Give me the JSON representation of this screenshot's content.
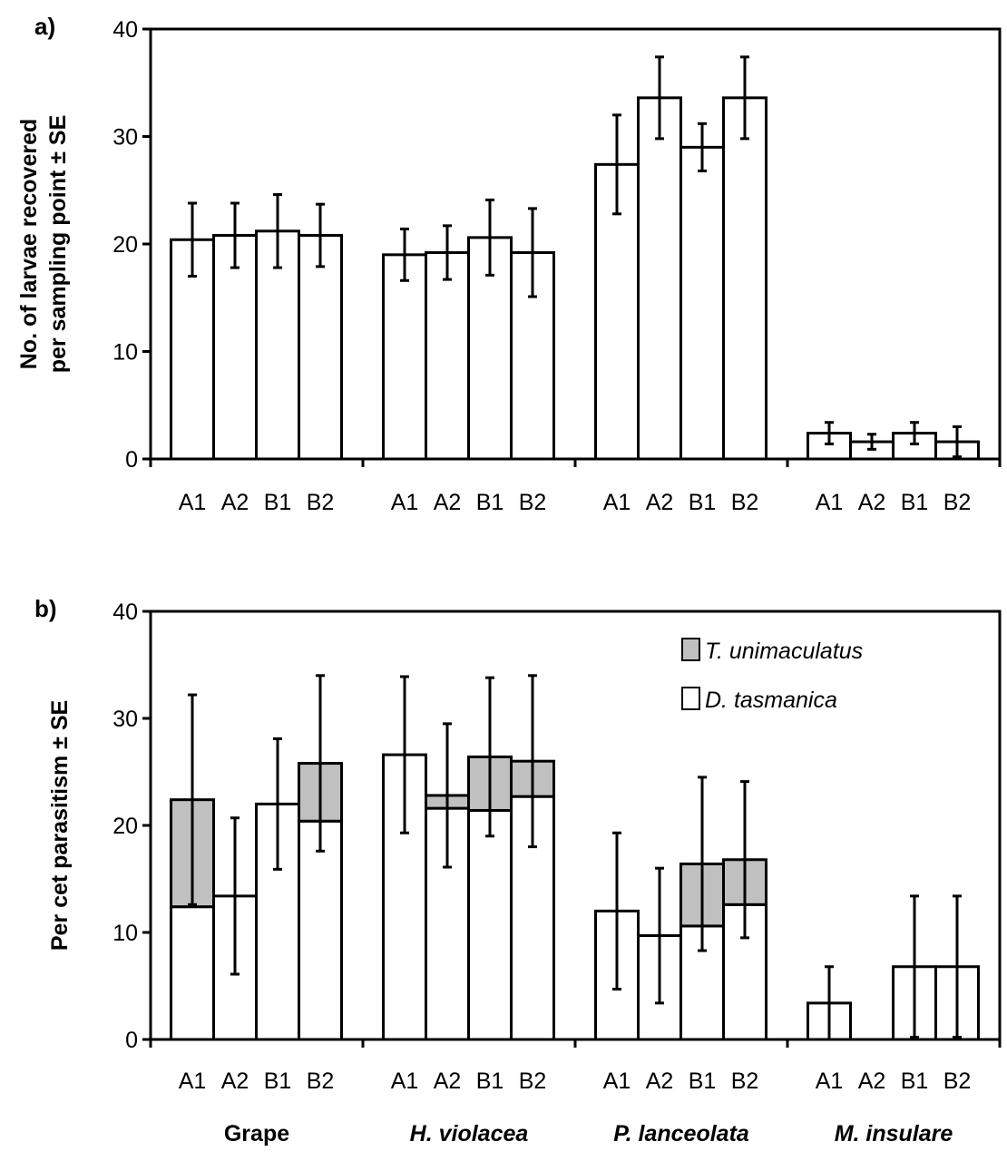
{
  "chart_data": [
    {
      "type": "bar",
      "panel_label": "a)",
      "ylabel_line1": "No. of larvae recovered",
      "ylabel_line2": "per sampling point ± SE",
      "ylim": [
        0,
        40
      ],
      "yticks": [
        "0",
        "10",
        "20",
        "30",
        "40"
      ],
      "groups": [
        {
          "sub_labels": [
            "A1",
            "A2",
            "B1",
            "B2"
          ],
          "values": [
            20.4,
            20.8,
            21.2,
            20.8
          ],
          "se": [
            3.4,
            3.0,
            3.4,
            2.9
          ]
        },
        {
          "sub_labels": [
            "A1",
            "A2",
            "B1",
            "B2"
          ],
          "values": [
            19.0,
            19.2,
            20.6,
            19.2
          ],
          "se": [
            2.4,
            2.5,
            3.5,
            4.1
          ]
        },
        {
          "sub_labels": [
            "A1",
            "A2",
            "B1",
            "B2"
          ],
          "values": [
            27.4,
            33.6,
            29.0,
            33.6
          ],
          "se": [
            4.6,
            3.8,
            2.2,
            3.8
          ]
        },
        {
          "sub_labels": [
            "A1",
            "A2",
            "B1",
            "B2"
          ],
          "values": [
            2.4,
            1.6,
            2.4,
            1.6
          ],
          "se": [
            1.0,
            0.7,
            1.0,
            1.4
          ]
        }
      ]
    },
    {
      "type": "bar",
      "stacked": true,
      "panel_label": "b)",
      "ylabel": "Per cet parasitism ± SE",
      "ylim": [
        0,
        40
      ],
      "yticks": [
        "0",
        "10",
        "20",
        "30",
        "40"
      ],
      "legend": {
        "position": "top-right",
        "entries": [
          {
            "name": "T. unimaculatus",
            "color": "#c0c0c0"
          },
          {
            "name": "D. tasmanica",
            "color": "#ffffff"
          }
        ]
      },
      "categories": [
        "Grape",
        "H. violacea",
        "P. lanceolata",
        "M. insulare"
      ],
      "groups": [
        {
          "sub_labels": [
            "A1",
            "A2",
            "B1",
            "B2"
          ],
          "d_tasmanica": [
            12.4,
            13.4,
            22.0,
            20.4
          ],
          "t_unimaculatus": [
            10.0,
            0,
            0,
            5.4
          ],
          "total": [
            22.4,
            13.4,
            22.0,
            25.8
          ],
          "se": [
            9.8,
            7.3,
            6.1,
            8.2
          ]
        },
        {
          "sub_labels": [
            "A1",
            "A2",
            "B1",
            "B2"
          ],
          "d_tasmanica": [
            26.6,
            21.6,
            21.4,
            22.7
          ],
          "t_unimaculatus": [
            0,
            1.2,
            5.0,
            3.3
          ],
          "total": [
            26.6,
            22.8,
            26.4,
            26.0
          ],
          "se": [
            7.3,
            6.7,
            7.4,
            8.0
          ]
        },
        {
          "sub_labels": [
            "A1",
            "A2",
            "B1",
            "B2"
          ],
          "d_tasmanica": [
            12.0,
            9.7,
            10.6,
            12.6
          ],
          "t_unimaculatus": [
            0,
            0,
            5.8,
            4.2
          ],
          "total": [
            12.0,
            9.7,
            16.4,
            16.8
          ],
          "se": [
            7.3,
            6.3,
            8.1,
            7.3
          ]
        },
        {
          "sub_labels": [
            "A1",
            "A2",
            "B1",
            "B2"
          ],
          "d_tasmanica": [
            3.4,
            0,
            6.8,
            6.8
          ],
          "t_unimaculatus": [
            0,
            0,
            0,
            0
          ],
          "total": [
            3.4,
            0,
            6.8,
            6.8
          ],
          "se": [
            3.4,
            0,
            6.6,
            6.6
          ]
        }
      ]
    }
  ]
}
